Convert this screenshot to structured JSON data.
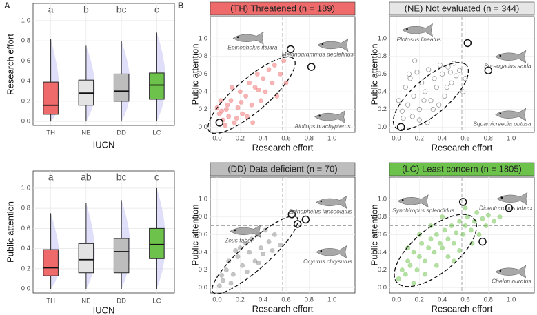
{
  "panel_labels": [
    "A",
    "B"
  ],
  "chart_data": [
    {
      "type": "box",
      "categories": [
        "TH",
        "NE",
        "DD",
        "LC"
      ],
      "letters": [
        "a",
        "b",
        "bc",
        "c"
      ],
      "colors": [
        "#ef6b6b",
        "#e3e3e3",
        "#bdbdbd",
        "#6cc24a"
      ],
      "low": [
        0,
        0,
        0,
        0
      ],
      "q1": [
        0.07,
        0.16,
        0.2,
        0.22
      ],
      "median": [
        0.16,
        0.28,
        0.3,
        0.36
      ],
      "q3": [
        0.39,
        0.41,
        0.47,
        0.48
      ],
      "high": [
        0.82,
        0.75,
        0.8,
        0.88
      ],
      "ylim": [
        -0.04,
        1.17
      ],
      "yticks": [
        {
          "value": 0,
          "label": "0.0"
        },
        0.2,
        0.4,
        0.6,
        0.8,
        {
          "value": 1,
          "label": "1.0"
        }
      ],
      "xlabel": "IUCN",
      "ylabel": "Research effort",
      "grid": true
    },
    {
      "type": "box",
      "categories": [
        "TH",
        "NE",
        "DD",
        "LC"
      ],
      "letters": [
        "a",
        "ab",
        "bc",
        "c"
      ],
      "colors": [
        "#ef6b6b",
        "#e3e3e3",
        "#bdbdbd",
        "#6cc24a"
      ],
      "low": [
        0,
        0,
        0,
        0
      ],
      "q1": [
        0.13,
        0.16,
        0.16,
        0.3
      ],
      "median": [
        0.21,
        0.29,
        0.37,
        0.44
      ],
      "q3": [
        0.39,
        0.45,
        0.5,
        0.6
      ],
      "high": [
        0.75,
        0.85,
        0.88,
        1
      ],
      "ylim": [
        -0.04,
        1.17
      ],
      "yticks": [
        {
          "value": 0,
          "label": "0.0"
        },
        0.2,
        0.4,
        0.6,
        0.8,
        {
          "value": 1,
          "label": "1.0"
        }
      ],
      "xlabel": "IUCN",
      "ylabel": "Public attention",
      "grid": true
    },
    {
      "type": "scatter",
      "title": "(TH) Threatened (n = 189)",
      "title_color": "#ef6b6b",
      "color": "#ef6b6b",
      "hollow": false,
      "x": [
        0.02,
        0.05,
        0.08,
        0.1,
        0.12,
        0.15,
        0.18,
        0.2,
        0.22,
        0.25,
        0.28,
        0.3,
        0.33,
        0.35,
        0.38,
        0.4,
        0.42,
        0.45,
        0.48,
        0.5,
        0.52,
        0.55,
        0.58,
        0.6,
        0.03,
        0.07,
        0.13,
        0.26,
        0.0,
        0.31,
        0.09,
        0.17,
        0.04,
        0.21,
        0.36
      ],
      "y": [
        0.15,
        0.08,
        0.2,
        0.12,
        0.3,
        0.05,
        0.22,
        0.4,
        0.15,
        0.35,
        0.5,
        0.25,
        0.45,
        0.6,
        0.3,
        0.55,
        0.4,
        0.65,
        0.5,
        0.7,
        0.35,
        0.6,
        0.75,
        0.5,
        0.3,
        0.02,
        0.45,
        0.12,
        0.22,
        0.05,
        0.25,
        0.1,
        0.18,
        0.28,
        0.42
      ],
      "species": [
        {
          "name": "Epinephelus itajara",
          "x": 0.64,
          "y": 0.88
        },
        {
          "name": "Melanogrammus aeglefinus",
          "x": 0.82,
          "y": 0.68
        },
        {
          "name": "Aioliops brachypterus",
          "x": 0.02,
          "y": 0.05
        }
      ],
      "vline": 0.57,
      "hline": 0.7,
      "ellipse": {
        "center": [
          0.3,
          0.36
        ],
        "major": [
          0.36,
          0.42
        ],
        "minor": [
          -0.12,
          0.11
        ]
      },
      "xlim": [
        -0.06,
        1.2
      ],
      "ylim": [
        -0.06,
        1.25
      ],
      "xticks": [
        {
          "value": 0,
          "label": "0.0"
        },
        0.2,
        0.4,
        0.6,
        0.8,
        {
          "value": 1,
          "label": "1.0"
        }
      ],
      "yticks": [
        {
          "value": 0,
          "label": "0.0"
        },
        0.2,
        0.4,
        0.6,
        0.8,
        {
          "value": 1,
          "label": "1.0"
        }
      ],
      "xlabel": "Research effort",
      "ylabel": "Public attention"
    },
    {
      "type": "scatter",
      "title": "(NE) Not evaluated (n = 344)",
      "title_color": "#e6e6e6",
      "color": "#8c8c8c",
      "hollow": true,
      "x": [
        0.02,
        0.05,
        0.08,
        0.1,
        0.12,
        0.15,
        0.18,
        0.2,
        0.22,
        0.25,
        0.28,
        0.3,
        0.33,
        0.35,
        0.38,
        0.4,
        0.42,
        0.45,
        0.48,
        0.5,
        0.52,
        0.55,
        0.58,
        0.6,
        0.06,
        0.14,
        0.24,
        0.32,
        0.44,
        0.16,
        0.27,
        0.37,
        0.47,
        0.11,
        0.2
      ],
      "y": [
        0.3,
        0.18,
        0.45,
        0.25,
        0.55,
        0.35,
        0.62,
        0.2,
        0.5,
        0.4,
        0.65,
        0.3,
        0.55,
        0.45,
        0.7,
        0.6,
        0.35,
        0.68,
        0.5,
        0.72,
        0.58,
        0.64,
        0.4,
        0.55,
        0.1,
        0.12,
        0.3,
        0.2,
        0.45,
        0.75,
        0.05,
        0.25,
        0.62,
        0.6,
        0.08
      ],
      "species": [
        {
          "name": "Plotosus lineatus",
          "x": 0.62,
          "y": 0.95
        },
        {
          "name": "Boreogadus saida",
          "x": 0.8,
          "y": 0.64
        },
        {
          "name": "Squamicreedia obtusa",
          "x": 0.04,
          "y": 0.0
        }
      ],
      "vline": 0.57,
      "hline": 0.7,
      "ellipse": {
        "center": [
          0.3,
          0.35
        ],
        "major": [
          0.3,
          0.36
        ],
        "minor": [
          -0.13,
          0.12
        ]
      },
      "xlim": [
        -0.06,
        1.2
      ],
      "ylim": [
        -0.06,
        1.25
      ],
      "xticks": [
        {
          "value": 0,
          "label": "0.0"
        },
        0.2,
        0.4,
        0.6,
        0.8,
        {
          "value": 1,
          "label": "1.0"
        }
      ],
      "yticks": [
        {
          "value": 0,
          "label": "0.0"
        },
        0.2,
        0.4,
        0.6,
        0.8,
        {
          "value": 1,
          "label": "1.0"
        }
      ],
      "xlabel": "Research effort",
      "ylabel": "Public attention"
    },
    {
      "type": "scatter",
      "title": "(DD) Data deficient (n = 70)",
      "title_color": "#bdbdbd",
      "color": "#8c8c8c",
      "hollow": false,
      "x": [
        0.02,
        0.05,
        0.08,
        0.1,
        0.14,
        0.18,
        0.2,
        0.22,
        0.25,
        0.28,
        0.3,
        0.33,
        0.35,
        0.38,
        0.4,
        0.42,
        0.45,
        0.48,
        0.5,
        0.55,
        0.12,
        0.26,
        0.36,
        0.04,
        0.16
      ],
      "y": [
        0.02,
        0.08,
        0.2,
        0.3,
        0.15,
        0.35,
        0.45,
        0.25,
        0.5,
        0.4,
        0.55,
        0.3,
        0.6,
        0.45,
        0.38,
        0.65,
        0.52,
        0.42,
        0.6,
        0.48,
        0.05,
        0.18,
        0.28,
        0.14,
        0.42
      ],
      "species": [
        {
          "name": "Zeus faber",
          "x": 0.65,
          "y": 0.83
        },
        {
          "name": "Epinephelus lanceolatus",
          "x": 0.77,
          "y": 0.77
        },
        {
          "name": "Ocyurus chrysurus",
          "x": 0.7,
          "y": 0.72
        }
      ],
      "vline": 0.57,
      "hline": 0.7,
      "ellipse": {
        "center": [
          0.33,
          0.37
        ],
        "major": [
          0.36,
          0.43
        ],
        "minor": [
          -0.1,
          0.09
        ]
      },
      "xlim": [
        -0.06,
        1.2
      ],
      "ylim": [
        -0.06,
        1.25
      ],
      "xticks": [
        {
          "value": 0,
          "label": "0.0"
        },
        0.2,
        0.4,
        0.6,
        0.8,
        {
          "value": 1,
          "label": "1.0"
        }
      ],
      "yticks": [
        {
          "value": 0,
          "label": "0.0"
        },
        0.2,
        0.4,
        0.6,
        0.8,
        {
          "value": 1,
          "label": "1.0"
        }
      ],
      "xlabel": "Research effort",
      "ylabel": "Public attention"
    },
    {
      "type": "scatter",
      "title": "(LC) Least concern (n = 1805)",
      "title_color": "#6cc24a",
      "color": "#6cc24a",
      "hollow": false,
      "x": [
        0.02,
        0.05,
        0.08,
        0.1,
        0.12,
        0.15,
        0.18,
        0.2,
        0.22,
        0.25,
        0.28,
        0.3,
        0.33,
        0.35,
        0.38,
        0.4,
        0.42,
        0.45,
        0.48,
        0.5,
        0.52,
        0.55,
        0.58,
        0.6,
        0.62,
        0.65,
        0.68,
        0.7,
        0.72,
        0.75,
        0.78,
        0.8,
        0.85,
        0.9,
        0.15,
        0.25,
        0.35,
        0.45,
        0.55,
        0.3,
        0.4,
        0.5,
        0.2,
        0.1,
        0.6,
        0.66
      ],
      "y": [
        0.1,
        0.2,
        0.15,
        0.3,
        0.25,
        0.4,
        0.2,
        0.35,
        0.5,
        0.3,
        0.45,
        0.55,
        0.4,
        0.6,
        0.5,
        0.45,
        0.65,
        0.55,
        0.7,
        0.5,
        0.62,
        0.75,
        0.6,
        0.7,
        0.8,
        0.65,
        0.75,
        0.85,
        0.6,
        0.78,
        0.7,
        0.82,
        0.75,
        0.8,
        0.05,
        0.15,
        0.25,
        0.35,
        0.42,
        0.7,
        0.8,
        0.3,
        0.6,
        0.45,
        0.9,
        0.5
      ],
      "species": [
        {
          "name": "Synchiropus splendidus",
          "x": 0.58,
          "y": 0.97
        },
        {
          "name": "Dicentrarchus labrax",
          "x": 0.98,
          "y": 0.9
        },
        {
          "name": "Chelon auratus",
          "x": 0.75,
          "y": 0.52
        }
      ],
      "vline": 0.57,
      "hline": 0.7,
      "ellipse": {
        "center": [
          0.34,
          0.42
        ],
        "major": [
          0.32,
          0.38
        ],
        "minor": [
          -0.16,
          0.15
        ]
      },
      "xlim": [
        -0.06,
        1.2
      ],
      "ylim": [
        -0.06,
        1.25
      ],
      "xticks": [
        {
          "value": 0,
          "label": "0.0"
        },
        0.2,
        0.4,
        0.6,
        0.8,
        {
          "value": 1,
          "label": "1.0"
        }
      ],
      "yticks": [
        {
          "value": 0,
          "label": "0.0"
        },
        0.2,
        0.4,
        0.6,
        0.8,
        {
          "value": 1,
          "label": "1.0"
        }
      ],
      "xlabel": "Research effort",
      "ylabel": "Public attention"
    }
  ]
}
